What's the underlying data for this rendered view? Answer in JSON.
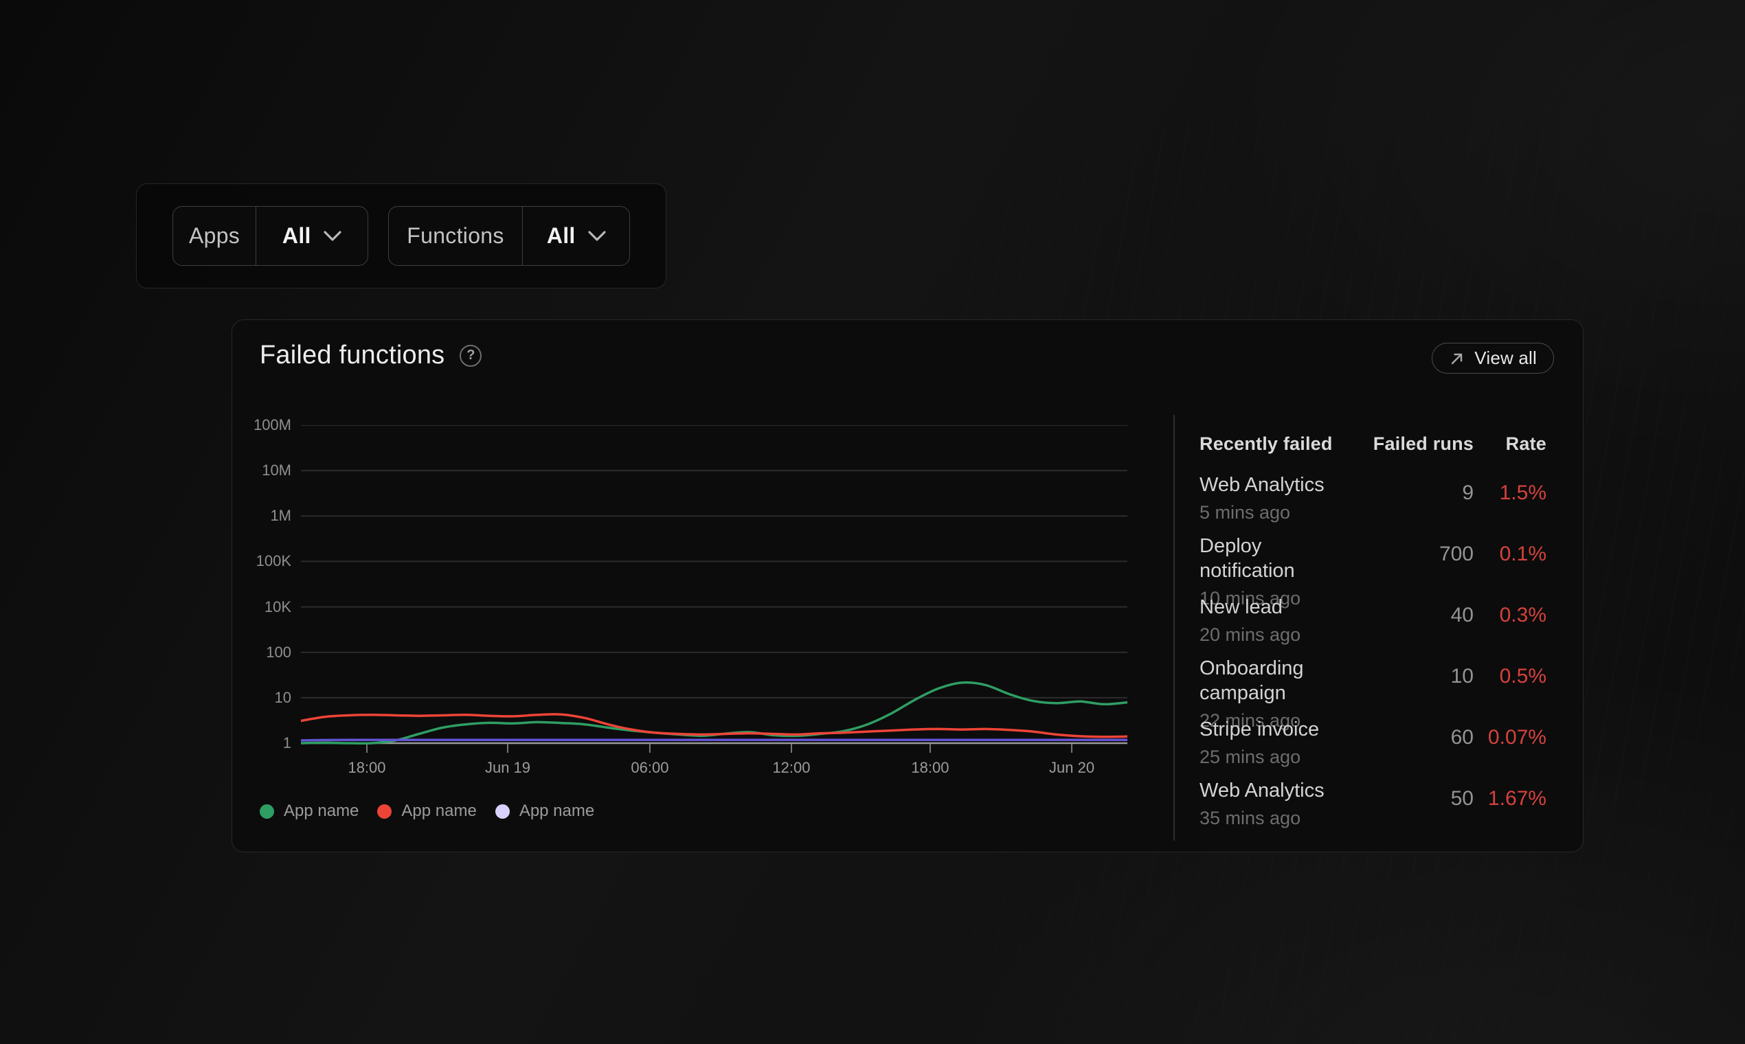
{
  "filters": {
    "apps": {
      "label": "Apps",
      "value": "All"
    },
    "functions": {
      "label": "Functions",
      "value": "All"
    }
  },
  "card": {
    "title": "Failed functions",
    "help_glyph": "?",
    "view_all_label": "View all"
  },
  "chart_data": {
    "type": "line",
    "title": "Failed functions",
    "y_scale": "log",
    "grid": true,
    "legend_position": "bottom-left",
    "y_tick_labels": [
      "100M",
      "10M",
      "1M",
      "100K",
      "10K",
      "100",
      "10",
      "1"
    ],
    "x_tick_labels": [
      "18:00",
      "Jun 19",
      "06:00",
      "12:00",
      "18:00",
      "Jun 20"
    ],
    "x_tick_pos": [
      0.0798,
      0.2502,
      0.4222,
      0.5935,
      0.7614,
      0.9327
    ],
    "series": [
      {
        "name": "App name",
        "color": "#2f9e63",
        "values": [
          1.0,
          1.02,
          0.98,
          1.0,
          1.15,
          1.6,
          2.2,
          2.6,
          2.8,
          2.72,
          2.9,
          2.78,
          2.6,
          2.2,
          1.9,
          1.7,
          1.55,
          1.45,
          1.62,
          1.75,
          1.5,
          1.45,
          1.6,
          1.85,
          2.6,
          4.5,
          9,
          16,
          21.5,
          19,
          12,
          8.5,
          7.6,
          8.3,
          7.2,
          7.9
        ]
      },
      {
        "name": "App name",
        "color": "#ee4437",
        "values": [
          3.1,
          3.8,
          4.1,
          4.2,
          4.1,
          4.0,
          4.1,
          4.2,
          4.0,
          3.9,
          4.2,
          4.3,
          3.6,
          2.6,
          2.0,
          1.7,
          1.6,
          1.55,
          1.6,
          1.65,
          1.6,
          1.55,
          1.65,
          1.7,
          1.8,
          1.9,
          2.0,
          2.05,
          2.0,
          2.05,
          1.95,
          1.8,
          1.55,
          1.42,
          1.38,
          1.4
        ]
      },
      {
        "name": "App name",
        "color": "#6355d4",
        "legend_color": "#d9d2fc",
        "values": [
          1.15,
          1.17,
          1.18,
          1.18,
          1.18,
          1.18,
          1.18,
          1.18,
          1.18,
          1.18,
          1.18,
          1.18,
          1.18,
          1.18,
          1.18,
          1.18,
          1.18,
          1.18,
          1.18,
          1.18,
          1.18,
          1.18,
          1.18,
          1.18,
          1.18,
          1.18,
          1.18,
          1.18,
          1.18,
          1.18,
          1.18,
          1.18,
          1.18,
          1.18,
          1.18,
          1.18
        ]
      }
    ]
  },
  "table": {
    "headers": [
      "Recently failed",
      "Failed runs",
      "Rate"
    ],
    "rows": [
      {
        "name": "Web Analytics",
        "time": "5 mins ago",
        "runs": "9",
        "rate": "1.5%"
      },
      {
        "name": "Deploy notification",
        "time": "10 mins ago",
        "runs": "700",
        "rate": "0.1%"
      },
      {
        "name": "New lead",
        "time": "20 mins ago",
        "runs": "40",
        "rate": "0.3%"
      },
      {
        "name": "Onboarding campaign",
        "time": "22 mins ago",
        "runs": "10",
        "rate": "0.5%"
      },
      {
        "name": "Stripe invoice",
        "time": "25 mins ago",
        "runs": "60",
        "rate": "0.07%"
      },
      {
        "name": "Web Analytics",
        "time": "35 mins ago",
        "runs": "50",
        "rate": "1.67%"
      }
    ]
  },
  "colors": {
    "rate_red": "#d6423d",
    "grid_line": "#2c2c2c",
    "axis_line": "#9a9a9a",
    "tick_mark": "#777777"
  }
}
